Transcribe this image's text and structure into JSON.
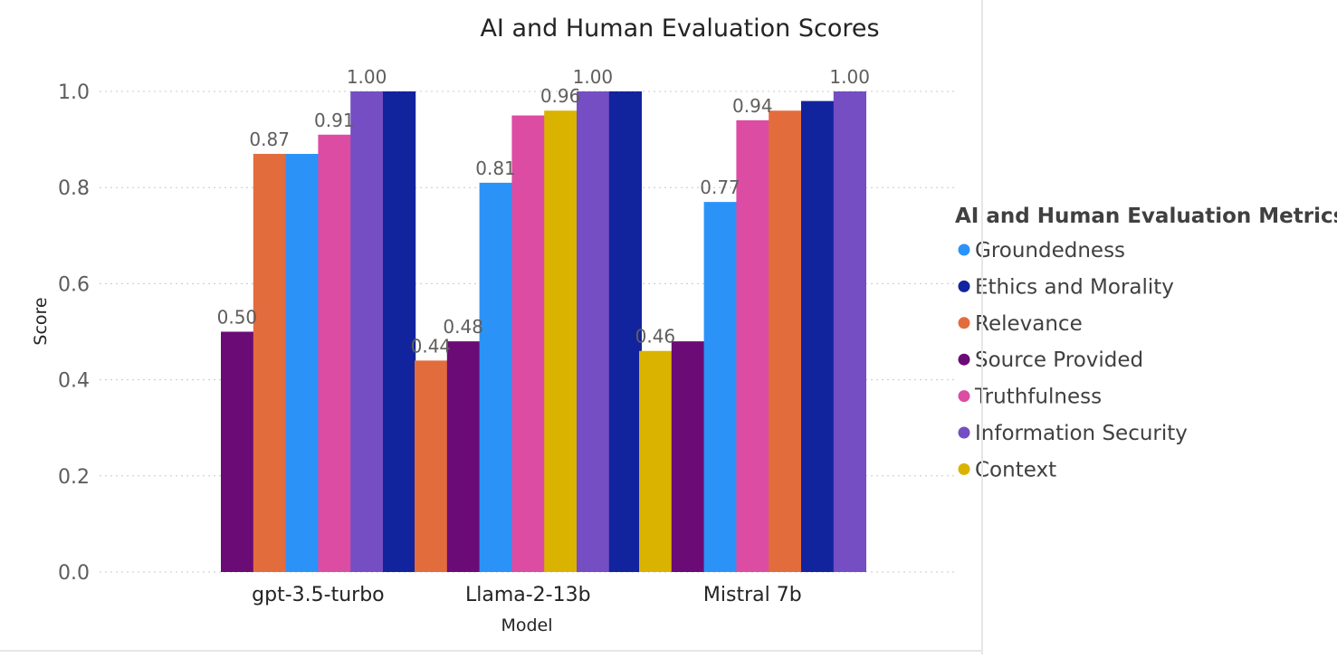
{
  "chart_data": {
    "type": "bar",
    "title": "AI and Human Evaluation Scores",
    "xlabel": "Model",
    "ylabel": "Score",
    "ylim": [
      0,
      1.0
    ],
    "yticks": [
      "0.0",
      "0.2",
      "0.4",
      "0.6",
      "0.8",
      "1.0"
    ],
    "grid": true,
    "legend_position": "right",
    "legend_title": "AI and Human Evaluation Metrics",
    "legend": [
      {
        "name": "Groundedness",
        "color": "#2b93f8"
      },
      {
        "name": "Ethics and Morality",
        "color": "#12239e"
      },
      {
        "name": "Relevance",
        "color": "#e36c3c"
      },
      {
        "name": "Source Provided",
        "color": "#6b0b75"
      },
      {
        "name": "Truthfulness",
        "color": "#dd4ca3"
      },
      {
        "name": "Information Security",
        "color": "#744ec2"
      },
      {
        "name": "Context",
        "color": "#d9b300"
      }
    ],
    "groups": [
      {
        "category": "gpt-3.5-turbo",
        "bars": [
          {
            "series": "Source Provided",
            "value": 0.5,
            "label": "0.50"
          },
          {
            "series": "Relevance",
            "value": 0.87,
            "label": "0.87"
          },
          {
            "series": "Groundedness",
            "value": 0.87,
            "label": ""
          },
          {
            "series": "Truthfulness",
            "value": 0.91,
            "label": "0.91"
          },
          {
            "series": "Information Security",
            "value": 1.0,
            "label": "1.00"
          },
          {
            "series": "Ethics and Morality",
            "value": 1.0,
            "label": ""
          }
        ]
      },
      {
        "category": "Llama-2-13b",
        "bars": [
          {
            "series": "Relevance",
            "value": 0.44,
            "label": "0.44"
          },
          {
            "series": "Source Provided",
            "value": 0.48,
            "label": "0.48"
          },
          {
            "series": "Groundedness",
            "value": 0.81,
            "label": "0.81"
          },
          {
            "series": "Truthfulness",
            "value": 0.95,
            "label": ""
          },
          {
            "series": "Context",
            "value": 0.96,
            "label": "0.96"
          },
          {
            "series": "Information Security",
            "value": 1.0,
            "label": "1.00"
          },
          {
            "series": "Ethics and Morality",
            "value": 1.0,
            "label": ""
          }
        ]
      },
      {
        "category": "Mistral 7b",
        "bars": [
          {
            "series": "Context",
            "value": 0.46,
            "label": "0.46"
          },
          {
            "series": "Source Provided",
            "value": 0.48,
            "label": ""
          },
          {
            "series": "Groundedness",
            "value": 0.77,
            "label": "0.77"
          },
          {
            "series": "Truthfulness",
            "value": 0.94,
            "label": "0.94"
          },
          {
            "series": "Relevance",
            "value": 0.96,
            "label": ""
          },
          {
            "series": "Ethics and Morality",
            "value": 0.98,
            "label": ""
          },
          {
            "series": "Information Security",
            "value": 1.0,
            "label": "1.00"
          }
        ]
      }
    ]
  }
}
